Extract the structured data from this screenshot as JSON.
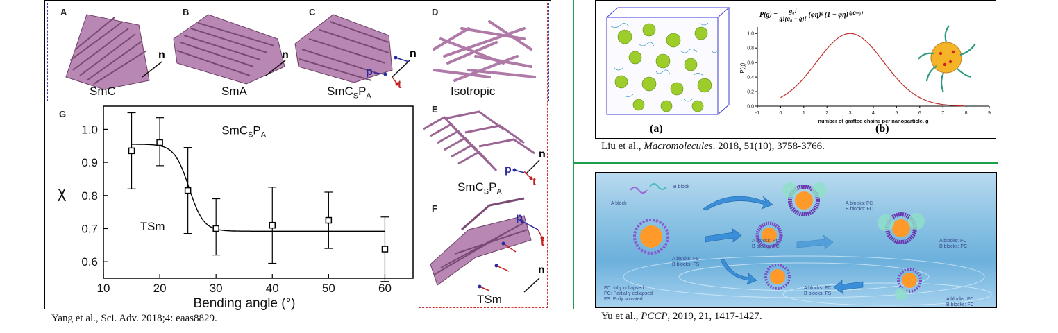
{
  "left_figure": {
    "panels": {
      "A": {
        "letter": "A",
        "phase": "SmC",
        "director": "n"
      },
      "B": {
        "letter": "B",
        "phase": "SmA",
        "director": "n"
      },
      "C": {
        "letter": "C",
        "phase_main": "SmC",
        "phase_sub1": "S",
        "phase_mid": "P",
        "phase_sub2": "A",
        "vectors": [
          "n",
          "p",
          "t"
        ]
      },
      "D": {
        "letter": "D",
        "phase": "Isotropic"
      },
      "E": {
        "letter": "E",
        "phase_main": "SmC",
        "phase_sub1": "S",
        "phase_mid": "P",
        "phase_sub2": "A",
        "vectors": [
          "n",
          "p",
          "t"
        ]
      },
      "F": {
        "letter": "F",
        "phase": "TSm",
        "vectors": [
          "p",
          "t",
          "n"
        ]
      },
      "G": {
        "letter": "G"
      }
    },
    "colors": {
      "molecule": "#b07aa8",
      "blue_box": "#3b3bb0",
      "red_box": "#d03030",
      "p_vector": "#2a2aa0",
      "t_vector": "#c02020"
    }
  },
  "chart_data": {
    "type": "scatter",
    "x": [
      15,
      20,
      25,
      30,
      40,
      50,
      60
    ],
    "y": [
      0.935,
      0.96,
      0.815,
      0.7,
      0.71,
      0.725,
      0.638
    ],
    "err_low": [
      0.82,
      0.89,
      0.685,
      0.62,
      0.595,
      0.64,
      0.54
    ],
    "err_high": [
      1.05,
      1.035,
      0.945,
      0.79,
      0.825,
      0.81,
      0.735
    ],
    "fit": "sigmoid",
    "xlabel": "Bending angle (°)",
    "ylabel": "χ",
    "xlim": [
      10,
      65
    ],
    "ylim": [
      0.55,
      1.07
    ],
    "xticks": [
      "10",
      "20",
      "30",
      "40",
      "50",
      "60"
    ],
    "yticks": [
      "0.6",
      "0.7",
      "0.8",
      "0.9",
      "1.0"
    ],
    "annotations": {
      "upper_main": "SmC",
      "upper_sub1": "S",
      "upper_mid": "P",
      "upper_sub2": "A",
      "lower": "TSm"
    }
  },
  "citations": {
    "left": "Yang et al., Sci. Adv. 2018;4: eaas8829.",
    "top_right": {
      "authors": "Liu et al., ",
      "journal": "Macromolecules",
      "rest": ". 2018, 51(10), 3758-3766."
    },
    "bottom_right": {
      "authors": "Yu et al., ",
      "journal": "PCCP",
      "rest": ", 2019, 21, 1417-1427."
    }
  },
  "liu_figure": {
    "label_a": "(a)",
    "label_b": "(b)",
    "formula": {
      "lhs": "P(g) =",
      "num": "g₀!",
      "den": "g!(g₀ − g)!",
      "rhs": "(φη)ᵍ (1 − φη)⁽ᵍ⁰⁻ᵍ⁾"
    },
    "ylabel": "P(g)",
    "xlabel": "number of grafted chains per nanoparticle, g",
    "xticks": [
      "-1",
      "0",
      "1",
      "2",
      "3",
      "4",
      "5",
      "6",
      "7",
      "8",
      "9"
    ],
    "yticks": [
      "0.0",
      "0.2",
      "0.4",
      "0.6",
      "0.8",
      "1.0"
    ],
    "curve_color": "#c0302a"
  },
  "yu_figure": {
    "labels": {
      "a_block": "A block",
      "b_block": "B block",
      "s1": [
        "A blocks: FC",
        "B blocks: FC"
      ],
      "s2": [
        "A blocks: FS",
        "B blocks: FS"
      ],
      "s3": [
        "A blocks: PC",
        "B blocks: FC"
      ],
      "s4": [
        "A blocks: FC",
        "B blocks: PC"
      ],
      "s5": [
        "A blocks: FC",
        "B blocks: FS"
      ],
      "s6": [
        "A blocks: FC",
        "B blocks: FC"
      ]
    },
    "legend": [
      "FC: fully collapsed",
      "PC: Partially collapsed",
      "FS: Fully solvated"
    ]
  },
  "divider_color": "#1aa04a"
}
